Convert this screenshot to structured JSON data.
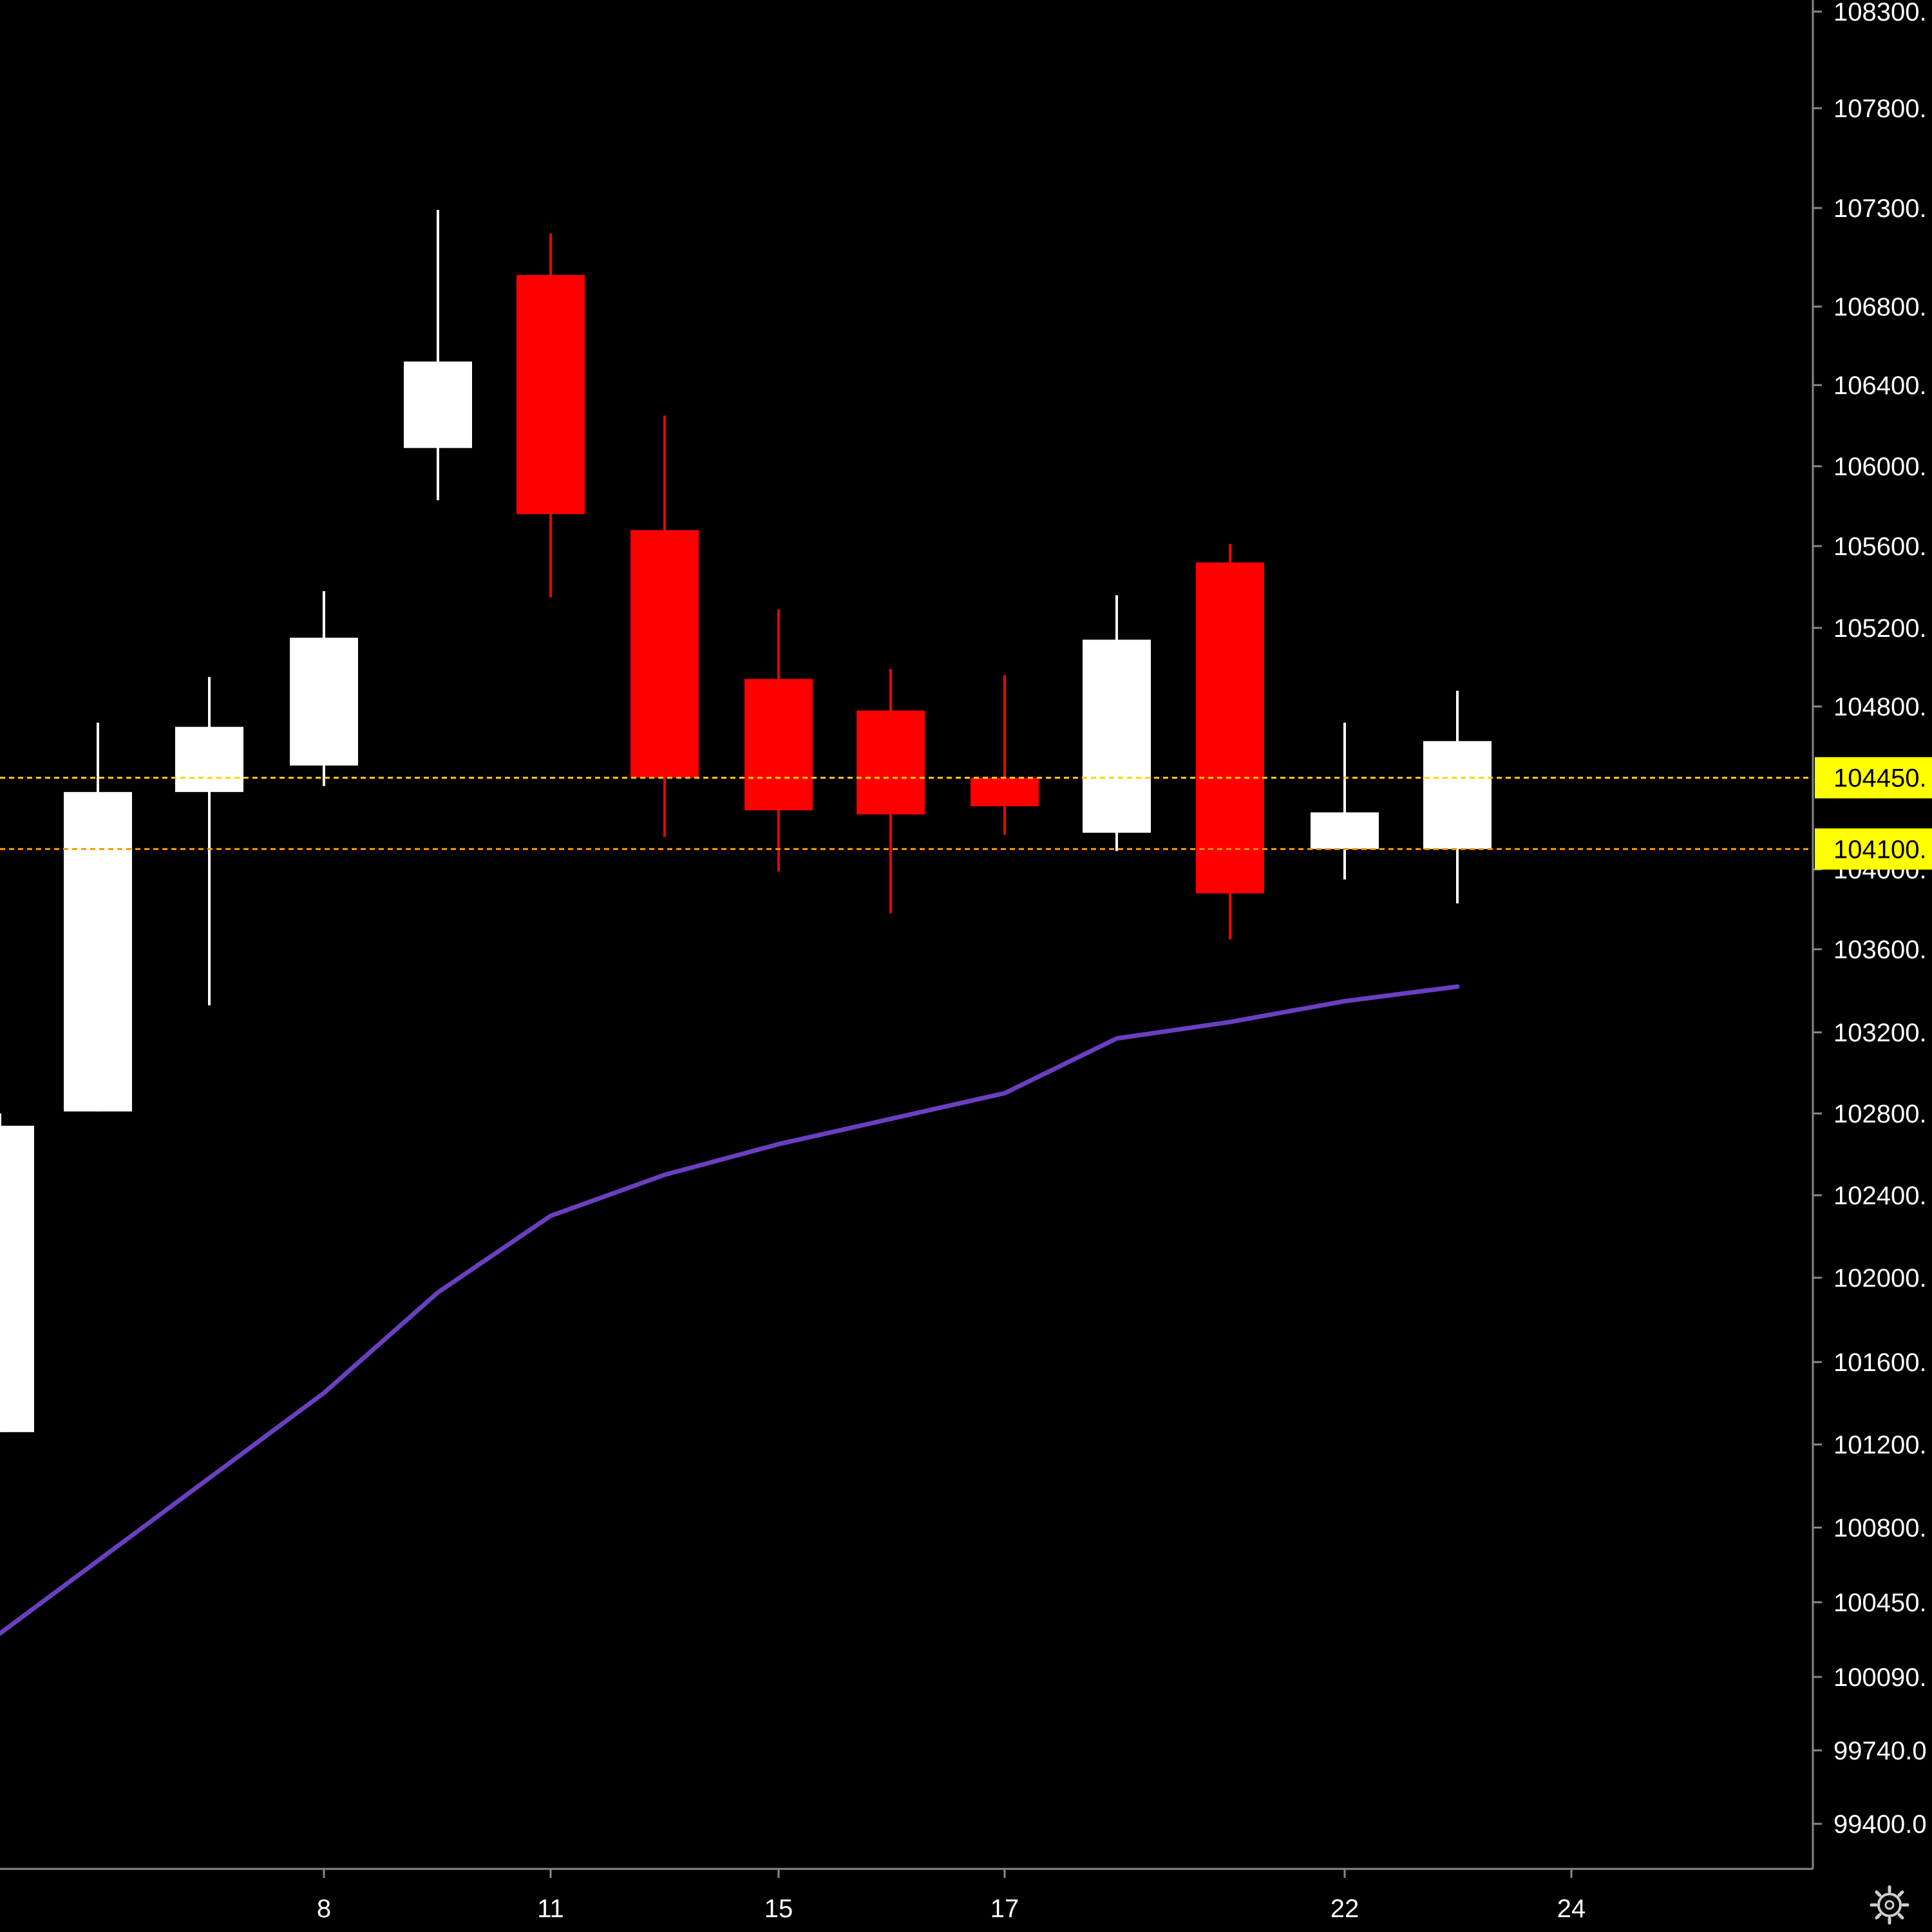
{
  "colors": {
    "background": "#000000",
    "up_candle": "#ffffff",
    "down_candle": "#ff0000",
    "ma_line": "#6a3fc0",
    "axis_text": "#ffffff",
    "axis_line": "#888888",
    "hline_1": "#ffd400",
    "hline_2": "#ff9800",
    "hline_label_bg": "#ffff00"
  },
  "settings_icon": "gear-icon",
  "chart_data": {
    "type": "candlestick",
    "title": "",
    "xlabel": "",
    "ylabel": "",
    "grid": false,
    "ylim": [
      99100,
      108360
    ],
    "x_tick_labels": [
      {
        "day": 8,
        "label": "8"
      },
      {
        "day": 11,
        "label": "11"
      },
      {
        "day": 15,
        "label": "15"
      },
      {
        "day": 17,
        "label": "17"
      },
      {
        "day": 22,
        "label": "22"
      },
      {
        "day": 24,
        "label": "24"
      }
    ],
    "y_tick_labels": [
      {
        "value": 108300,
        "label": "108300."
      },
      {
        "value": 107800,
        "label": "107800."
      },
      {
        "value": 107300,
        "label": "107300."
      },
      {
        "value": 106800,
        "label": "106800."
      },
      {
        "value": 106400,
        "label": "106400."
      },
      {
        "value": 106000,
        "label": "106000."
      },
      {
        "value": 105600,
        "label": "105600."
      },
      {
        "value": 105200,
        "label": "105200."
      },
      {
        "value": 104800,
        "label": "104800."
      },
      {
        "value": 104000,
        "label": "104000."
      },
      {
        "value": 103600,
        "label": "103600."
      },
      {
        "value": 103200,
        "label": "103200."
      },
      {
        "value": 102800,
        "label": "102800."
      },
      {
        "value": 102400,
        "label": "102400."
      },
      {
        "value": 102000,
        "label": "102000."
      },
      {
        "value": 101600,
        "label": "101600."
      },
      {
        "value": 101200,
        "label": "101200."
      },
      {
        "value": 100800,
        "label": "100800."
      },
      {
        "value": 100450,
        "label": "100450."
      },
      {
        "value": 100090,
        "label": "100090."
      },
      {
        "value": 99740,
        "label": "99740.0"
      },
      {
        "value": 99400,
        "label": "99400.0"
      }
    ],
    "candles": [
      {
        "day": 5,
        "open": 101260,
        "high": 102800,
        "low": 101260,
        "close": 102740
      },
      {
        "day": 6,
        "open": 102810,
        "high": 104720,
        "low": 102810,
        "close": 104380
      },
      {
        "day": 7,
        "open": 104380,
        "high": 104950,
        "low": 103330,
        "close": 104700
      },
      {
        "day": 8,
        "open": 104510,
        "high": 105380,
        "low": 104410,
        "close": 105150
      },
      {
        "day": 10,
        "open": 106090,
        "high": 107290,
        "low": 105830,
        "close": 106520
      },
      {
        "day": 11,
        "open": 106960,
        "high": 107170,
        "low": 105350,
        "close": 105760
      },
      {
        "day": 13,
        "open": 105680,
        "high": 106250,
        "low": 104160,
        "close": 104450
      },
      {
        "day": 15,
        "open": 104940,
        "high": 105290,
        "low": 103990,
        "close": 104290
      },
      {
        "day": 16,
        "open": 104780,
        "high": 104990,
        "low": 103780,
        "close": 104270
      },
      {
        "day": 17,
        "open": 104450,
        "high": 104960,
        "low": 104170,
        "close": 104310
      },
      {
        "day": 19,
        "open": 104180,
        "high": 105360,
        "low": 104090,
        "close": 105140
      },
      {
        "day": 20,
        "open": 105520,
        "high": 105610,
        "low": 103650,
        "close": 103880
      },
      {
        "day": 22,
        "open": 104100,
        "high": 104720,
        "low": 103950,
        "close": 104280
      },
      {
        "day": 23,
        "open": 104100,
        "high": 104880,
        "low": 103830,
        "close": 104630
      }
    ],
    "moving_average": [
      {
        "day": 5,
        "value": 100300
      },
      {
        "day": 8,
        "value": 101450
      },
      {
        "day": 10,
        "value": 101930
      },
      {
        "day": 11,
        "value": 102300
      },
      {
        "day": 13,
        "value": 102500
      },
      {
        "day": 15,
        "value": 102650
      },
      {
        "day": 17,
        "value": 102900
      },
      {
        "day": 19,
        "value": 103170
      },
      {
        "day": 20,
        "value": 103250
      },
      {
        "day": 22,
        "value": 103350
      },
      {
        "day": 23,
        "value": 103420
      }
    ],
    "horizontal_lines": [
      {
        "value": 104450,
        "label": "104450.",
        "color": "#ffd400"
      },
      {
        "value": 104100,
        "label": "104100.",
        "color": "#ff9800"
      }
    ]
  }
}
